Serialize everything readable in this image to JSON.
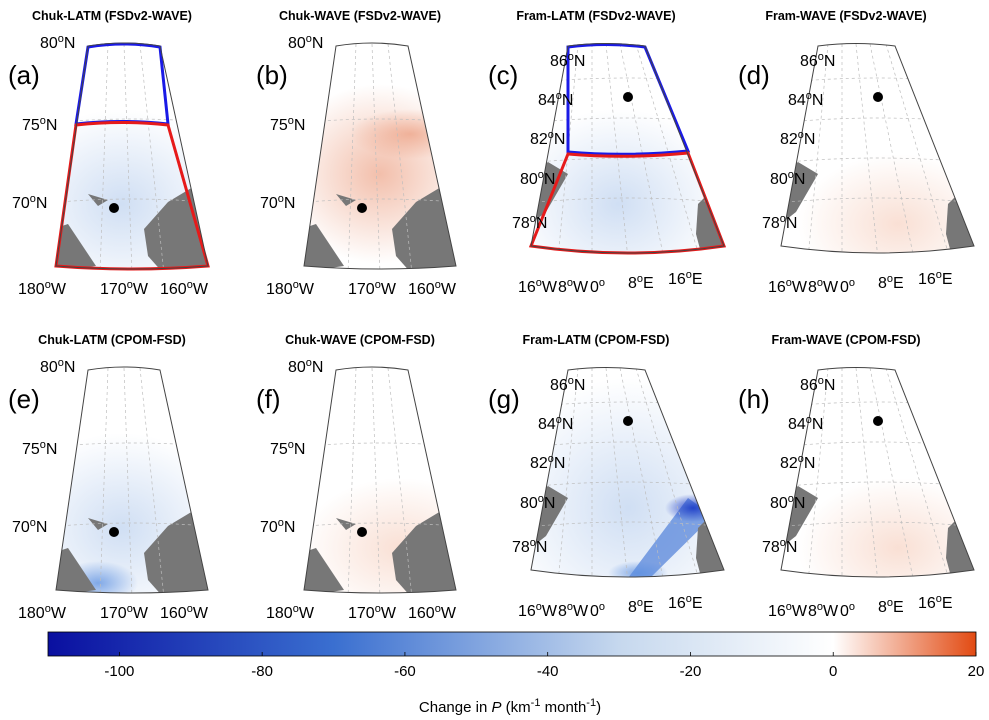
{
  "chart_data": {
    "type": "heatmap",
    "description": "Map panels of change in P",
    "panels": [
      {
        "id": "a",
        "label": "(a)",
        "title": "Chuk-LATM (FSDv2-WAVE)",
        "region": "chuk",
        "boxes": true,
        "tone": "blue-weak",
        "lat_labels": [
          "80",
          "75",
          "70"
        ],
        "lon_labels": [
          "180",
          "170",
          "160"
        ],
        "lon_hemi": [
          "W",
          "W",
          "W"
        ]
      },
      {
        "id": "b",
        "label": "(b)",
        "title": "Chuk-WAVE (FSDv2-WAVE)",
        "region": "chuk",
        "boxes": false,
        "tone": "red",
        "lat_labels": [
          "80",
          "75",
          "70"
        ],
        "lon_labels": [
          "180",
          "170",
          "160"
        ],
        "lon_hemi": [
          "W",
          "W",
          "W"
        ]
      },
      {
        "id": "c",
        "label": "(c)",
        "title": "Fram-LATM (FSDv2-WAVE)",
        "region": "fram",
        "boxes": true,
        "tone": "blue-weak",
        "lat_labels": [
          "86",
          "84",
          "82",
          "80",
          "78"
        ],
        "lon_labels": [
          "16",
          "8",
          "0",
          "8",
          "16"
        ],
        "lon_hemi": [
          "W",
          "W",
          "",
          "E",
          "E"
        ]
      },
      {
        "id": "d",
        "label": "(d)",
        "title": "Fram-WAVE (FSDv2-WAVE)",
        "region": "fram",
        "boxes": false,
        "tone": "red-weak",
        "lat_labels": [
          "86",
          "84",
          "82",
          "80",
          "78"
        ],
        "lon_labels": [
          "16",
          "8",
          "0",
          "8",
          "16"
        ],
        "lon_hemi": [
          "W",
          "W",
          "",
          "E",
          "E"
        ]
      },
      {
        "id": "e",
        "label": "(e)",
        "title": "Chuk-LATM (CPOM-FSD)",
        "region": "chuk",
        "boxes": false,
        "tone": "blue-weak",
        "lat_labels": [
          "80",
          "75",
          "70"
        ],
        "lon_labels": [
          "180",
          "170",
          "160"
        ],
        "lon_hemi": [
          "W",
          "W",
          "W"
        ]
      },
      {
        "id": "f",
        "label": "(f)",
        "title": "Chuk-WAVE (CPOM-FSD)",
        "region": "chuk",
        "boxes": false,
        "tone": "red-weak",
        "lat_labels": [
          "80",
          "75",
          "70"
        ],
        "lon_labels": [
          "180",
          "170",
          "160"
        ],
        "lon_hemi": [
          "W",
          "W",
          "W"
        ]
      },
      {
        "id": "g",
        "label": "(g)",
        "title": "Fram-LATM (CPOM-FSD)",
        "region": "fram",
        "boxes": false,
        "tone": "blue-strong",
        "lat_labels": [
          "86",
          "84",
          "82",
          "80",
          "78"
        ],
        "lon_labels": [
          "16",
          "8",
          "0",
          "8",
          "16"
        ],
        "lon_hemi": [
          "W",
          "W",
          "",
          "E",
          "E"
        ]
      },
      {
        "id": "h",
        "label": "(h)",
        "title": "Fram-WAVE (CPOM-FSD)",
        "region": "fram",
        "boxes": false,
        "tone": "red-weak",
        "lat_labels": [
          "86",
          "84",
          "82",
          "80",
          "78"
        ],
        "lon_labels": [
          "16",
          "8",
          "0",
          "8",
          "16"
        ],
        "lon_hemi": [
          "W",
          "W",
          "",
          "E",
          "E"
        ]
      }
    ],
    "colorbar": {
      "min": -110,
      "max": 20,
      "ticks": [
        -100,
        -80,
        -60,
        -40,
        -20,
        0,
        20
      ],
      "label_prefix": "Change in ",
      "label_var": "P",
      "label_units_a": "(km",
      "label_units_sup": "-1",
      "label_units_b": " month",
      "label_units_sup2": "-1",
      "label_units_c": ")",
      "colors": {
        "low": "#0a0fa0",
        "mid_blue": "#3a6fd0",
        "light_blue": "#c6d8ee",
        "zero": "#ffffff",
        "high": "#e24a12"
      }
    },
    "colors": {
      "land": "#777777",
      "box_north": "#1a1ae6",
      "box_south": "#e61a1a",
      "grid": "#bdbdbd",
      "frame": "#444444",
      "dot": "#000000"
    }
  }
}
